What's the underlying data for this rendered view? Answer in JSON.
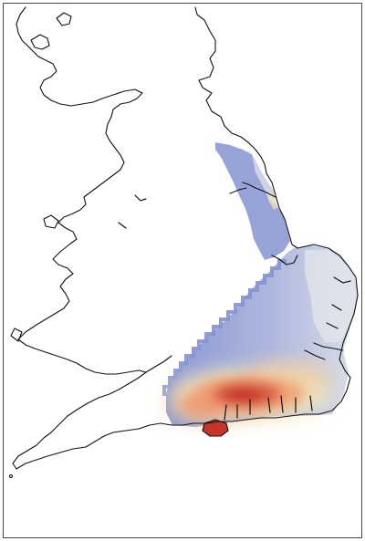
{
  "map": {
    "land_color": "#ffffff",
    "outline_color": "#111111",
    "frame_color": "#4a4a4a",
    "heat_scale": {
      "low": "#7f8fcf",
      "mid_low": "#c5cce6",
      "mid": "#f1e7b8",
      "mid_high": "#f0b27a",
      "high": "#c7352a"
    }
  }
}
